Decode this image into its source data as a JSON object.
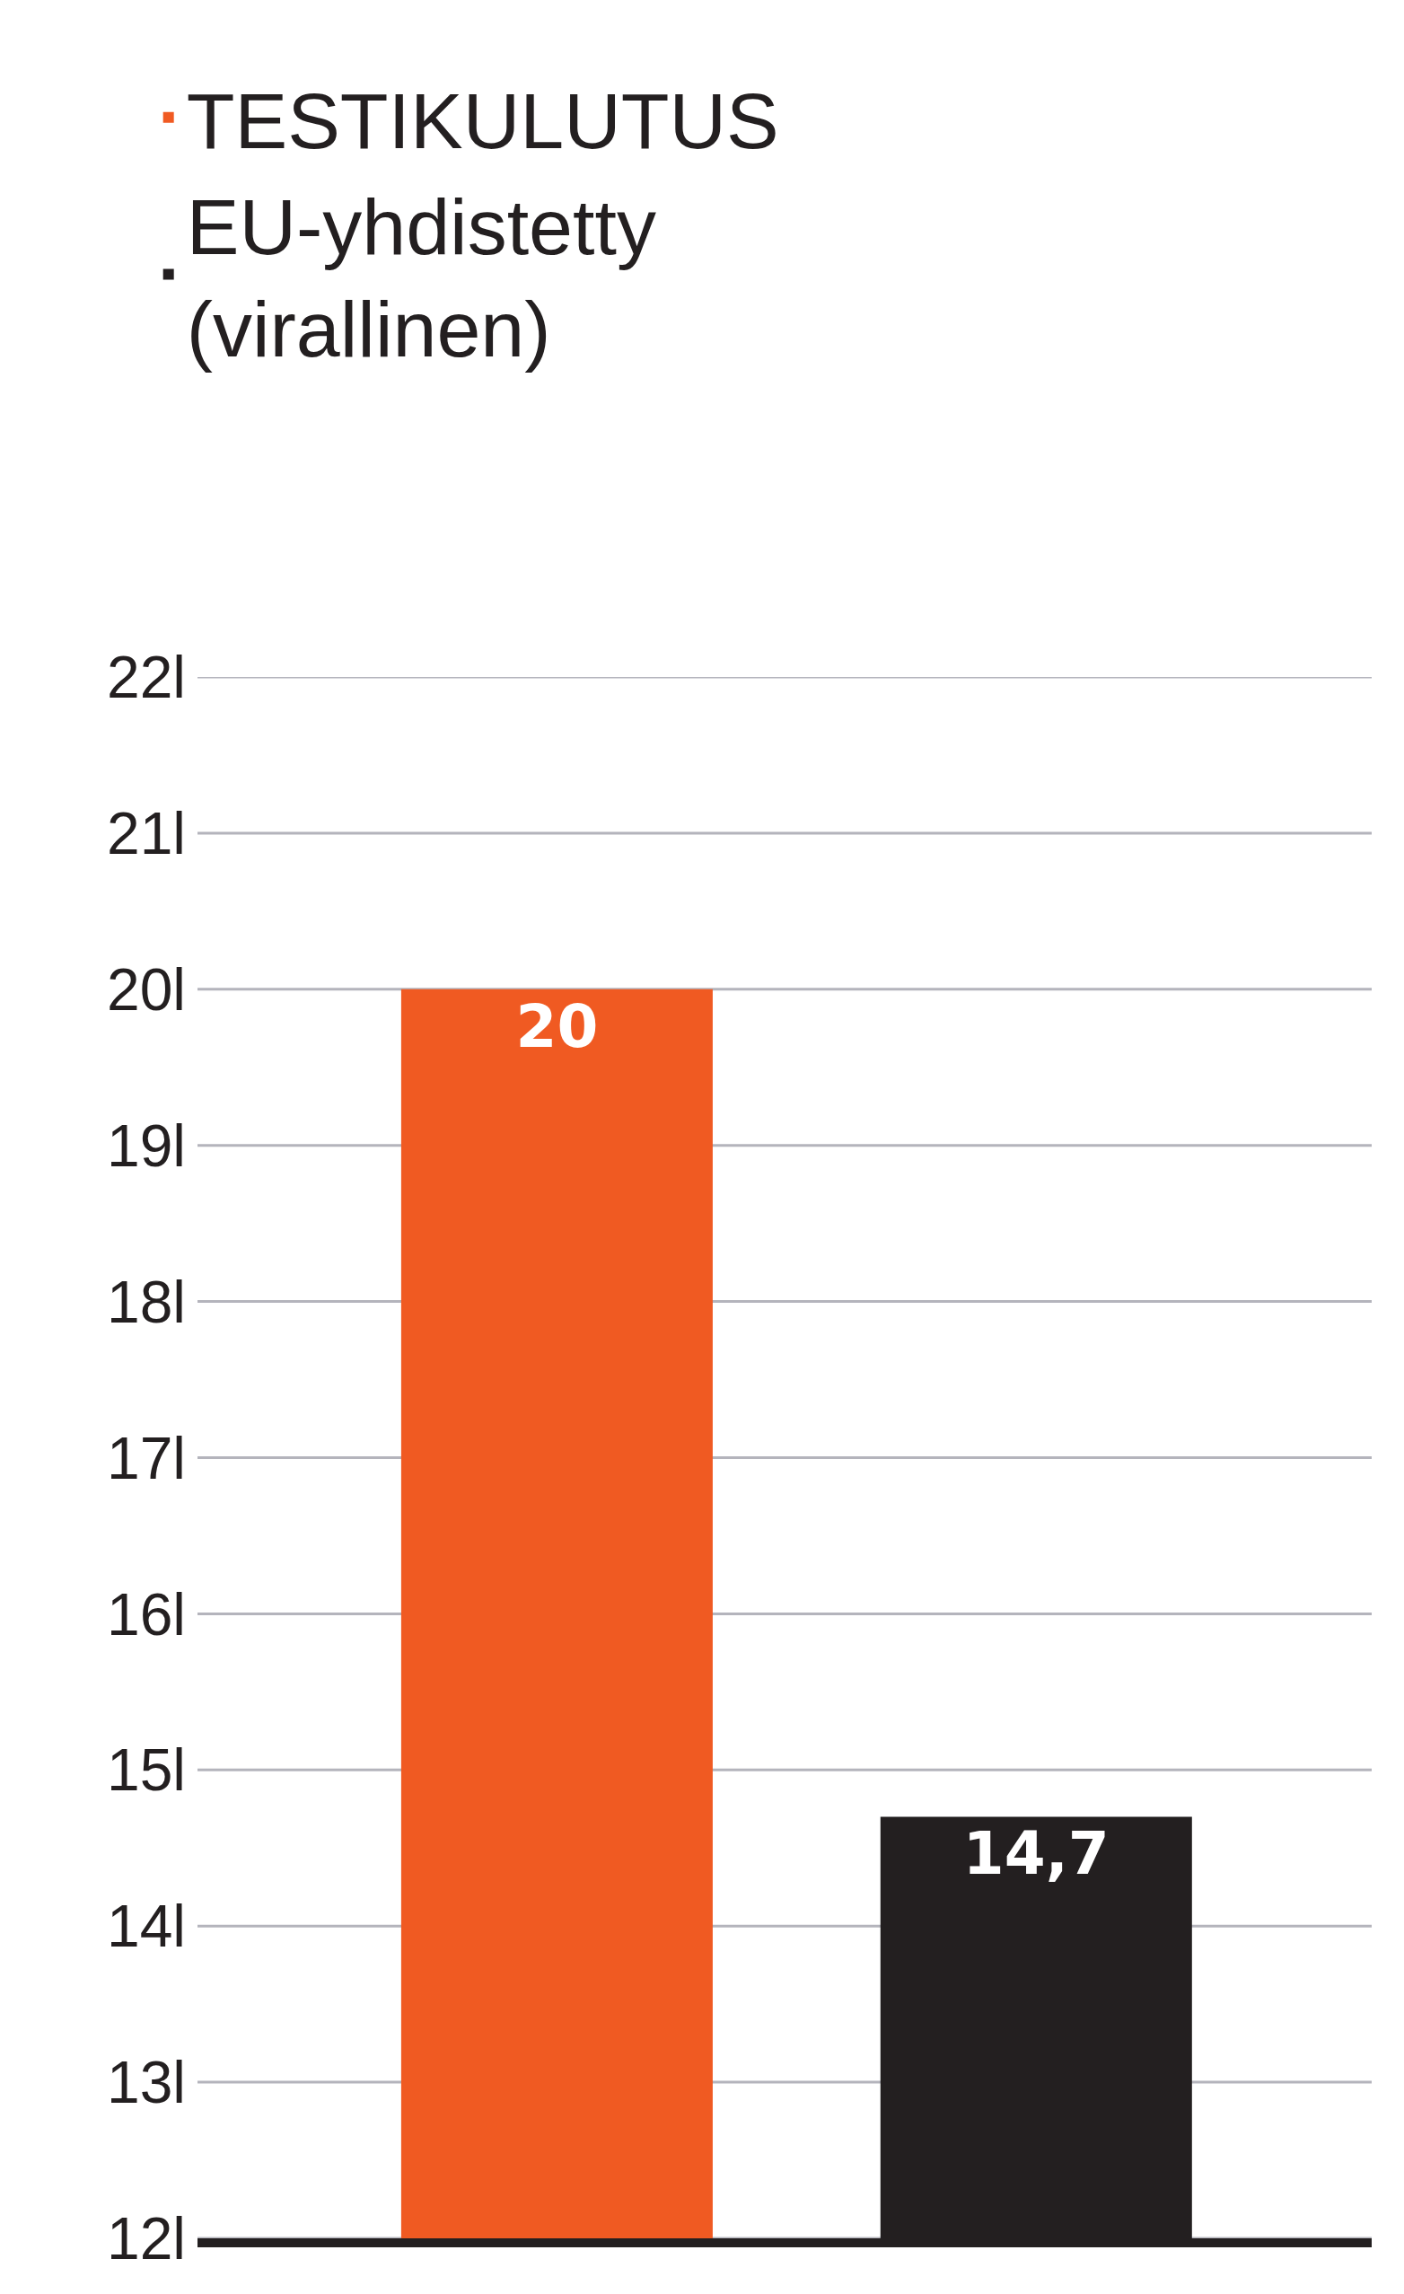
{
  "chart_data": {
    "type": "bar",
    "categories": [
      null,
      null
    ],
    "series": [
      {
        "name": "TESTIKULUTUS",
        "color": "#f05a22",
        "values": [
          20,
          null
        ],
        "value_labels": [
          "20",
          null
        ]
      },
      {
        "name": "EU-yhdistetty\n(virallinen)",
        "color": "#231f20",
        "values": [
          null,
          14.7
        ],
        "value_labels": [
          null,
          "14,7"
        ]
      }
    ],
    "ylim": [
      12,
      22
    ],
    "yticks": [
      {
        "value": 12,
        "label": "12l"
      },
      {
        "value": 13,
        "label": "13l"
      },
      {
        "value": 14,
        "label": "14l"
      },
      {
        "value": 15,
        "label": "15l"
      },
      {
        "value": 16,
        "label": "16l"
      },
      {
        "value": 17,
        "label": "17l"
      },
      {
        "value": 18,
        "label": "18l"
      },
      {
        "value": 19,
        "label": "19l"
      },
      {
        "value": 20,
        "label": "20l"
      },
      {
        "value": 21,
        "label": "21l"
      },
      {
        "value": 22,
        "label": "22l"
      }
    ],
    "grid": "y",
    "legend": "top"
  }
}
